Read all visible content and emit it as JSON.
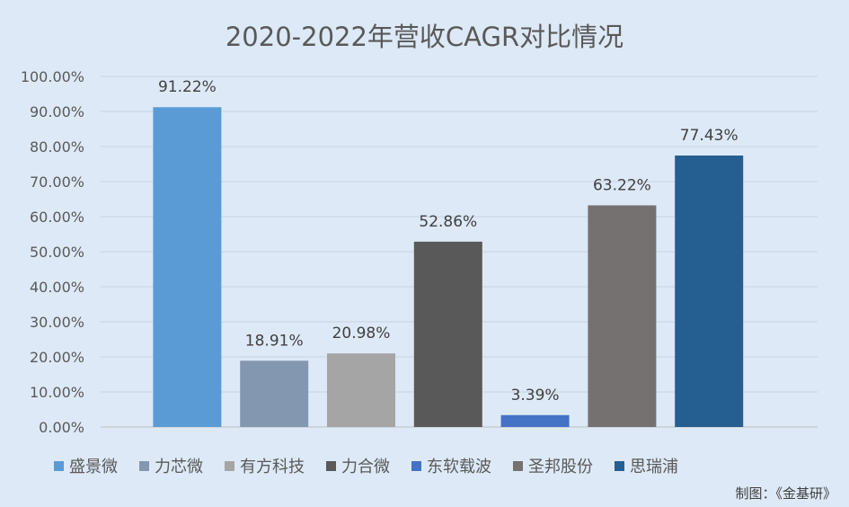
{
  "chart_data": {
    "type": "bar",
    "title": "2020-2022年营收CAGR对比情况",
    "categories": [
      "盛景微",
      "力芯微",
      "有方科技",
      "力合微",
      "东软载波",
      "圣邦股份",
      "思瑞浦"
    ],
    "values": [
      91.22,
      18.91,
      20.98,
      52.86,
      3.39,
      63.22,
      77.43
    ],
    "value_labels": [
      "91.22%",
      "18.91%",
      "20.98%",
      "52.86%",
      "3.39%",
      "63.22%",
      "77.43%"
    ],
    "colors": [
      "#5b9bd5",
      "#8497b0",
      "#a5a5a5",
      "#595959",
      "#4472c4",
      "#767171",
      "#255e91"
    ],
    "ylim": [
      0,
      100
    ],
    "yticks": [
      0,
      10,
      20,
      30,
      40,
      50,
      60,
      70,
      80,
      90,
      100
    ],
    "ytick_labels": [
      "0.00%",
      "10.00%",
      "20.00%",
      "30.00%",
      "40.00%",
      "50.00%",
      "60.00%",
      "70.00%",
      "80.00%",
      "90.00%",
      "100.00%"
    ],
    "grid": true,
    "legend_position": "bottom",
    "xlabel": "",
    "ylabel": ""
  },
  "source_note": "制图：《金基研》"
}
